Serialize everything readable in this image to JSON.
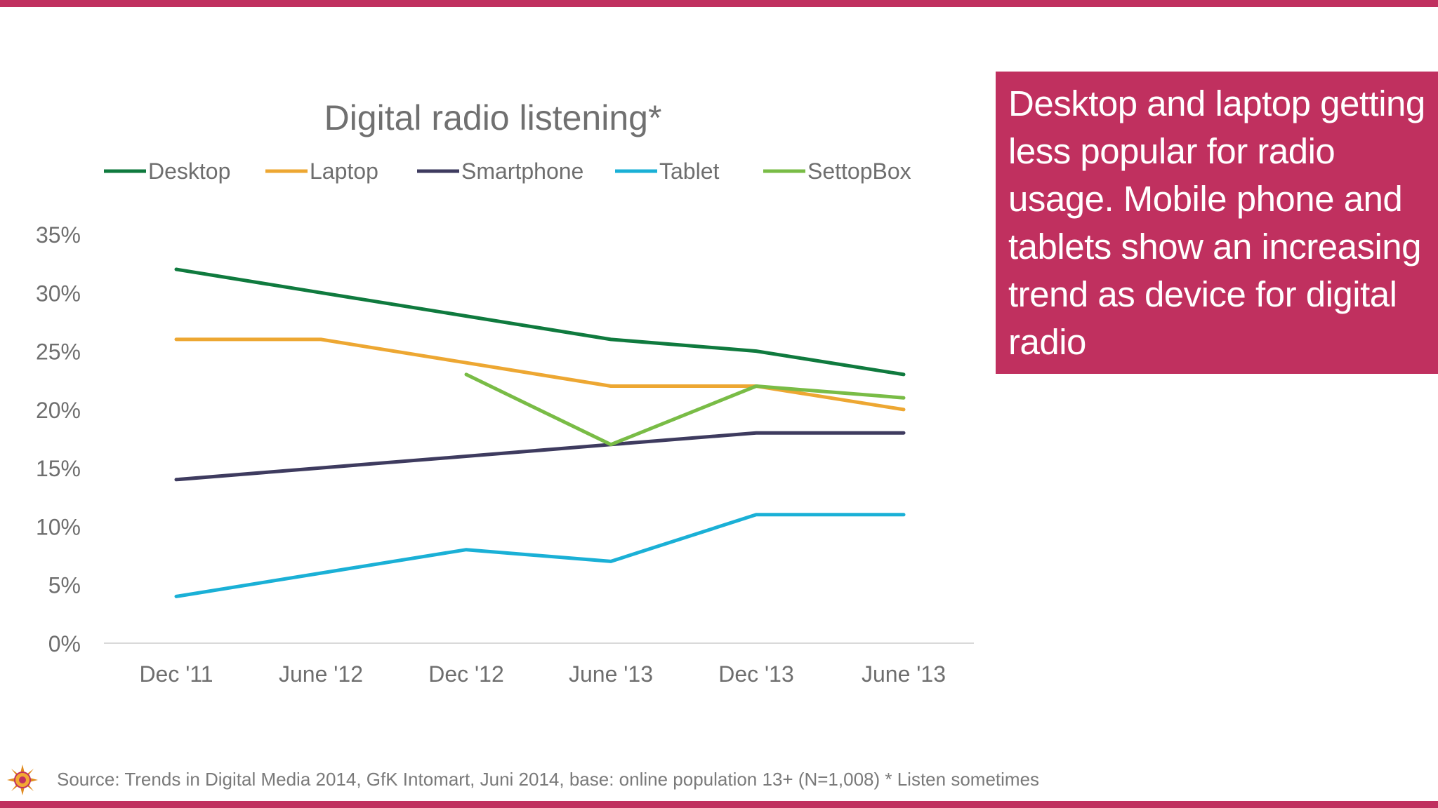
{
  "callout": {
    "text": "Desktop and laptop getting less popular for radio usage. Mobile phone and tablets show an increasing trend as device for digital radio"
  },
  "footer": {
    "source": "Source: Trends in Digital Media 2014, GfK Intomart, Juni 2014, base: online population 13+ (N=1,008) * Listen sometimes",
    "logo_icon": "sun-logo-icon"
  },
  "colors": {
    "accent": "#c0305f",
    "desktop": "#0f7a3e",
    "laptop": "#eda732",
    "smartphone": "#3e3b5f",
    "tablet": "#1ab0d6",
    "settopbox": "#79bc46"
  },
  "chart_data": {
    "type": "line",
    "title": "Digital radio listening*",
    "categories": [
      "Dec '11",
      "June '12",
      "Dec '12",
      "June '13",
      "Dec '13",
      "June '13"
    ],
    "y_ticks": [
      "0%",
      "5%",
      "10%",
      "15%",
      "20%",
      "25%",
      "30%",
      "35%"
    ],
    "ylim": [
      0,
      35
    ],
    "grid": false,
    "legend": "top",
    "series": [
      {
        "name": "Desktop",
        "color": "#0f7a3e",
        "values": [
          32,
          30,
          28,
          26,
          25,
          23
        ]
      },
      {
        "name": "Laptop",
        "color": "#eda732",
        "values": [
          26,
          26,
          24,
          22,
          22,
          20
        ]
      },
      {
        "name": "Smartphone",
        "color": "#3e3b5f",
        "values": [
          14,
          15,
          16,
          17,
          18,
          18
        ]
      },
      {
        "name": "Tablet",
        "color": "#1ab0d6",
        "values": [
          4,
          6,
          8,
          7,
          11,
          11
        ]
      },
      {
        "name": "SettopBox",
        "color": "#79bc46",
        "values": [
          null,
          null,
          23,
          17,
          22,
          21
        ]
      }
    ]
  }
}
